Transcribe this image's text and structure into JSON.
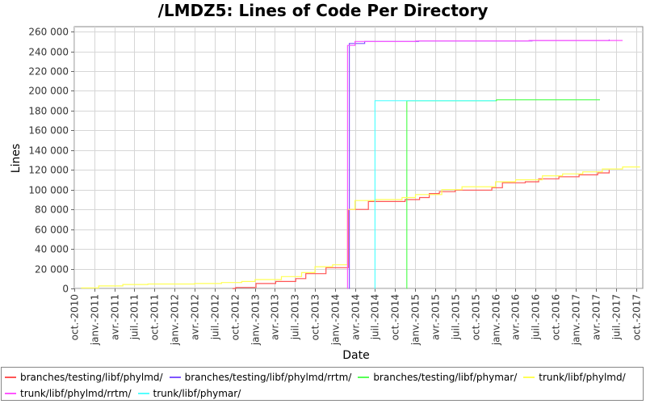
{
  "chart_data": {
    "type": "line",
    "title": "/LMDZ5: Lines of Code Per Directory",
    "xlabel": "Date",
    "ylabel": "Lines",
    "xlim": [
      "2010-10",
      "2017-11"
    ],
    "ylim": [
      0,
      265000
    ],
    "yticks": [
      0,
      20000,
      40000,
      60000,
      80000,
      100000,
      120000,
      140000,
      160000,
      180000,
      200000,
      220000,
      240000,
      260000
    ],
    "ytick_labels": [
      "0",
      "20 000",
      "40 000",
      "60 000",
      "80 000",
      "100 000",
      "120 000",
      "140 000",
      "160 000",
      "180 000",
      "200 000",
      "220 000",
      "240 000",
      "260 000"
    ],
    "xticks": [
      "2010-10",
      "2011-01",
      "2011-04",
      "2011-07",
      "2011-10",
      "2012-01",
      "2012-04",
      "2012-07",
      "2012-10",
      "2013-01",
      "2013-04",
      "2013-07",
      "2013-10",
      "2014-01",
      "2014-04",
      "2014-07",
      "2014-10",
      "2015-01",
      "2015-04",
      "2015-07",
      "2015-10",
      "2016-01",
      "2016-04",
      "2016-07",
      "2016-10",
      "2017-01",
      "2017-04",
      "2017-07",
      "2017-10"
    ],
    "xtick_labels": [
      "oct.-2010",
      "janv.-2011",
      "avr.-2011",
      "juil.-2011",
      "oct.-2011",
      "janv.-2012",
      "avr.-2012",
      "juil.-2012",
      "oct.-2012",
      "janv.-2013",
      "avr.-2013",
      "juil.-2013",
      "oct.-2013",
      "janv.-2014",
      "avr.-2014",
      "juil.-2014",
      "oct.-2014",
      "janv.-2015",
      "avr.-2015",
      "juil.-2015",
      "oct.-2015",
      "janv.-2016",
      "avr.-2016",
      "juil.-2016",
      "oct.-2016",
      "janv.-2017",
      "avr.-2017",
      "juil.-2017",
      "oct.-2017"
    ],
    "grid": true,
    "legend_position": "bottom",
    "series": [
      {
        "name": "branches/testing/libf/phylmd/",
        "color": "#ff5555",
        "step": true,
        "points": [
          [
            "2012-09-20",
            0
          ],
          [
            "2012-10-05",
            1000
          ],
          [
            "2013-01-05",
            5000
          ],
          [
            "2013-04-05",
            7000
          ],
          [
            "2013-07-05",
            10000
          ],
          [
            "2013-08-20",
            15000
          ],
          [
            "2013-11-20",
            21000
          ],
          [
            "2014-02-28",
            21000
          ],
          [
            "2014-03-01",
            80000
          ],
          [
            "2014-06-01",
            88000
          ],
          [
            "2014-11-15",
            90000
          ],
          [
            "2015-01-20",
            92000
          ],
          [
            "2015-03-05",
            96000
          ],
          [
            "2015-04-20",
            98000
          ],
          [
            "2015-07-01",
            99500
          ],
          [
            "2015-12-15",
            102000
          ],
          [
            "2016-02-01",
            107000
          ],
          [
            "2016-05-15",
            108000
          ],
          [
            "2016-07-15",
            111000
          ],
          [
            "2016-10-15",
            113000
          ],
          [
            "2017-01-15",
            115000
          ],
          [
            "2017-04-10",
            117000
          ],
          [
            "2017-06-01",
            120000
          ]
        ]
      },
      {
        "name": "branches/testing/libf/phylmd/rrtm/",
        "color": "#7f55ff",
        "step": true,
        "points": [
          [
            "2014-03-05",
            0
          ],
          [
            "2014-03-06",
            248000
          ],
          [
            "2014-05-15",
            250000
          ],
          [
            "2015-01-15",
            250500
          ],
          [
            "2016-06-15",
            251000
          ],
          [
            "2017-06-01",
            252000
          ]
        ]
      },
      {
        "name": "branches/testing/libf/phymar/",
        "color": "#55ff55",
        "step": true,
        "points": [
          [
            "2014-11-22",
            0
          ],
          [
            "2014-11-23",
            190000
          ],
          [
            "2016-01-05",
            191000
          ],
          [
            "2017-04-20",
            191000
          ]
        ]
      },
      {
        "name": "trunk/libf/phylmd/",
        "color": "#ffff55",
        "step": true,
        "points": [
          [
            "2010-11-01",
            500
          ],
          [
            "2011-01-20",
            2500
          ],
          [
            "2011-05-10",
            4000
          ],
          [
            "2011-09-01",
            4500
          ],
          [
            "2012-04-01",
            5000
          ],
          [
            "2012-08-01",
            6000
          ],
          [
            "2012-11-01",
            7000
          ],
          [
            "2013-01-01",
            9000
          ],
          [
            "2013-05-01",
            12000
          ],
          [
            "2013-08-01",
            16000
          ],
          [
            "2013-10-01",
            22000
          ],
          [
            "2013-12-20",
            24000
          ],
          [
            "2014-02-25",
            80000
          ],
          [
            "2014-04-01",
            89000
          ],
          [
            "2014-07-01",
            90000
          ],
          [
            "2014-11-01",
            92000
          ],
          [
            "2015-01-01",
            95000
          ],
          [
            "2015-05-01",
            100000
          ],
          [
            "2015-08-01",
            103000
          ],
          [
            "2016-01-01",
            108000
          ],
          [
            "2016-04-01",
            110000
          ],
          [
            "2016-08-01",
            114000
          ],
          [
            "2016-11-01",
            116000
          ],
          [
            "2017-02-01",
            118000
          ],
          [
            "2017-05-01",
            121000
          ],
          [
            "2017-08-01",
            123000
          ],
          [
            "2017-10-20",
            123000
          ]
        ]
      },
      {
        "name": "trunk/libf/phylmd/rrtm/",
        "color": "#ff55ff",
        "step": true,
        "points": [
          [
            "2014-02-25",
            0
          ],
          [
            "2014-02-26",
            246000
          ],
          [
            "2014-04-01",
            250000
          ],
          [
            "2015-01-01",
            250500
          ],
          [
            "2016-06-01",
            251000
          ],
          [
            "2017-08-01",
            251000
          ]
        ]
      },
      {
        "name": "trunk/libf/phymar/",
        "color": "#55ffff",
        "step": true,
        "points": [
          [
            "2014-06-30",
            0
          ],
          [
            "2014-07-01",
            190000
          ],
          [
            "2015-07-01",
            190000
          ],
          [
            "2016-01-01",
            190000
          ]
        ]
      }
    ]
  }
}
